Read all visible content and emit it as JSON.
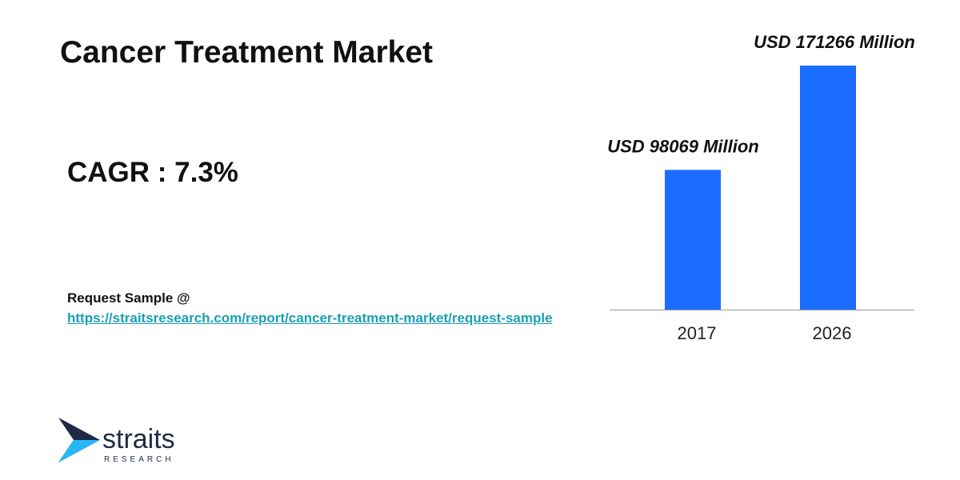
{
  "chart_data": {
    "type": "bar",
    "title": "Cancer Treatment Market",
    "categories": [
      "2017",
      "2026"
    ],
    "values": [
      98069,
      171266
    ],
    "value_labels": [
      "USD 98069 Million",
      "USD 171266 Million"
    ],
    "color": "#1a6dff"
  },
  "cagr": "CAGR : 7.3%",
  "request": {
    "label": "Request Sample @",
    "link": "https://straitsresearch.com/report/cancer-treatment-market/request-sample"
  },
  "logo": {
    "name": "straits",
    "sub": "RESEARCH"
  }
}
